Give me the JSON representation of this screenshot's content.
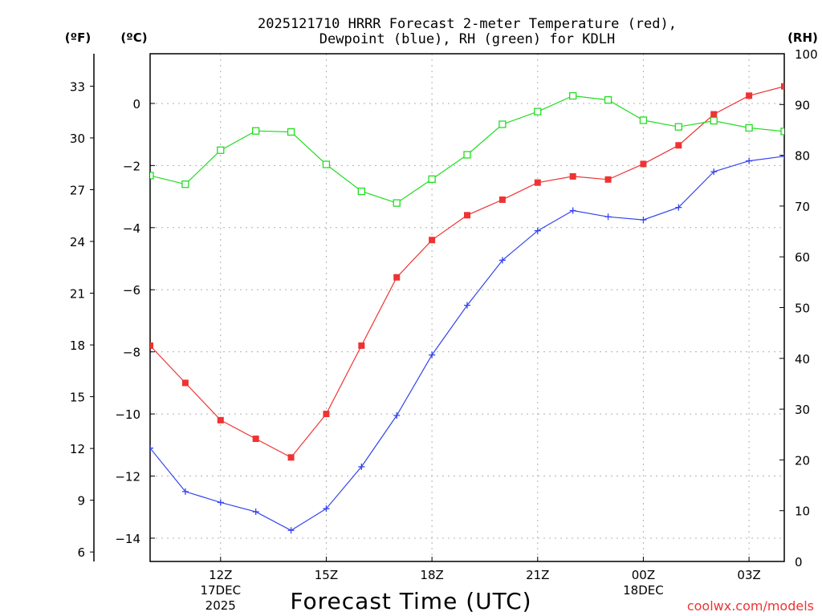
{
  "chart_data": {
    "type": "line",
    "title_line1": "2025121710 HRRR Forecast 2-meter Temperature (red),",
    "title_line2": "Dewpoint (blue), RH (green) for KDLH",
    "xlabel": "Forecast Time (UTC)",
    "watermark": "coolwx.com/models",
    "left_outer_unit": "(ºF)",
    "left_inner_unit": "(ºC)",
    "right_unit": "(RH)",
    "x_hours": [
      10,
      11,
      12,
      13,
      14,
      15,
      16,
      17,
      18,
      19,
      20,
      21,
      22,
      23,
      24,
      25,
      26,
      27,
      28
    ],
    "xlim": [
      10,
      28
    ],
    "x_ticks": [
      {
        "hour": 12,
        "label": "12Z",
        "sub1": "17DEC",
        "sub2": "2025"
      },
      {
        "hour": 15,
        "label": "15Z",
        "sub1": "",
        "sub2": ""
      },
      {
        "hour": 18,
        "label": "18Z",
        "sub1": "",
        "sub2": ""
      },
      {
        "hour": 21,
        "label": "21Z",
        "sub1": "",
        "sub2": ""
      },
      {
        "hour": 24,
        "label": "00Z",
        "sub1": "18DEC",
        "sub2": ""
      },
      {
        "hour": 27,
        "label": "03Z",
        "sub1": "",
        "sub2": ""
      }
    ],
    "celsius_ylim": [
      -14.75,
      1.6
    ],
    "celsius_ticks": [
      "0",
      "−2",
      "−4",
      "−6",
      "−8",
      "−10",
      "−12",
      "−14"
    ],
    "celsius_tick_values": [
      0,
      -2,
      -4,
      -6,
      -8,
      -10,
      -12,
      -14
    ],
    "fahrenheit_ticks": [
      "33",
      "30",
      "27",
      "24",
      "21",
      "18",
      "15",
      "12",
      "9",
      "6"
    ],
    "fahrenheit_tick_values": [
      33,
      30,
      27,
      24,
      21,
      18,
      15,
      12,
      9,
      6
    ],
    "rh_ylim": [
      0,
      100
    ],
    "rh_ticks": [
      "100",
      "90",
      "80",
      "70",
      "60",
      "50",
      "40",
      "30",
      "20",
      "10",
      "0"
    ],
    "rh_tick_values": [
      100,
      90,
      80,
      70,
      60,
      50,
      40,
      30,
      20,
      10,
      0
    ],
    "series": [
      {
        "name": "Temperature",
        "color": "#ee3333",
        "marker": "filled-square",
        "axis": "celsius",
        "values": [
          -7.8,
          -9.0,
          -10.2,
          -10.8,
          -11.4,
          -10.0,
          -7.8,
          -5.6,
          -4.4,
          -3.6,
          -3.1,
          -2.55,
          -2.35,
          -2.45,
          -1.95,
          -1.35,
          -0.35,
          0.25,
          0.55
        ]
      },
      {
        "name": "Dewpoint",
        "color": "#3344ee",
        "marker": "plus",
        "axis": "celsius",
        "values": [
          -11.1,
          -12.5,
          -12.85,
          -13.15,
          -13.75,
          -13.05,
          -11.7,
          -10.05,
          -8.1,
          -6.5,
          -5.05,
          -4.1,
          -3.45,
          -3.65,
          -3.75,
          -3.35,
          -2.2,
          -1.85,
          -1.7
        ]
      },
      {
        "name": "RH",
        "color": "#22dd22",
        "marker": "open-square",
        "axis": "rh",
        "values": [
          76,
          74.3,
          81,
          84.8,
          84.6,
          78.2,
          72.9,
          70.6,
          75.3,
          80.1,
          86.1,
          88.6,
          91.7,
          90.9,
          86.9,
          85.6,
          86.8,
          85.4,
          84.7
        ]
      }
    ]
  }
}
